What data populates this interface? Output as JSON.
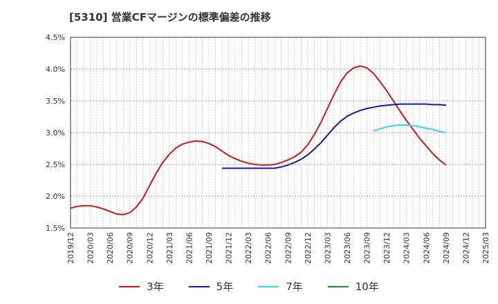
{
  "title": "[5310]  営業CFマージンの標準偏差の推移",
  "chart_data": {
    "type": "line",
    "title": "[5310]  営業CFマージンの標準偏差の推移",
    "xlabel": "",
    "ylabel": "",
    "ylim": [
      1.5,
      4.5
    ],
    "y_ticks": [
      "1.5%",
      "2.0%",
      "2.5%",
      "3.0%",
      "3.5%",
      "4.0%",
      "4.5%"
    ],
    "x_ticks": [
      "2019/12",
      "2020/03",
      "2020/06",
      "2020/09",
      "2020/12",
      "2021/03",
      "2021/06",
      "2021/09",
      "2021/12",
      "2022/03",
      "2022/06",
      "2022/09",
      "2022/12",
      "2023/03",
      "2023/06",
      "2023/09",
      "2023/12",
      "2024/03",
      "2024/06",
      "2024/09",
      "2024/12",
      "2025/03"
    ],
    "grid": true,
    "legend_placement": "bottom",
    "series": [
      {
        "name": "3年",
        "color": "#dd1111",
        "points": [
          [
            "2019/12",
            1.81
          ],
          [
            "2020/01",
            1.84
          ],
          [
            "2020/02",
            1.85
          ],
          [
            "2020/03",
            1.85
          ],
          [
            "2020/04",
            1.83
          ],
          [
            "2020/05",
            1.8
          ],
          [
            "2020/06",
            1.76
          ],
          [
            "2020/07",
            1.72
          ],
          [
            "2020/08",
            1.71
          ],
          [
            "2020/09",
            1.74
          ],
          [
            "2020/10",
            1.83
          ],
          [
            "2020/11",
            1.97
          ],
          [
            "2020/12",
            2.17
          ],
          [
            "2021/01",
            2.36
          ],
          [
            "2021/02",
            2.53
          ],
          [
            "2021/03",
            2.66
          ],
          [
            "2021/04",
            2.76
          ],
          [
            "2021/05",
            2.82
          ],
          [
            "2021/06",
            2.85
          ],
          [
            "2021/07",
            2.87
          ],
          [
            "2021/08",
            2.86
          ],
          [
            "2021/09",
            2.83
          ],
          [
            "2021/10",
            2.78
          ],
          [
            "2021/11",
            2.71
          ],
          [
            "2021/12",
            2.64
          ],
          [
            "2022/01",
            2.59
          ],
          [
            "2022/02",
            2.55
          ],
          [
            "2022/03",
            2.52
          ],
          [
            "2022/04",
            2.5
          ],
          [
            "2022/05",
            2.49
          ],
          [
            "2022/06",
            2.49
          ],
          [
            "2022/07",
            2.5
          ],
          [
            "2022/08",
            2.53
          ],
          [
            "2022/09",
            2.57
          ],
          [
            "2022/10",
            2.62
          ],
          [
            "2022/11",
            2.69
          ],
          [
            "2022/12",
            2.81
          ],
          [
            "2023/01",
            2.97
          ],
          [
            "2023/02",
            3.16
          ],
          [
            "2023/03",
            3.38
          ],
          [
            "2023/04",
            3.6
          ],
          [
            "2023/05",
            3.8
          ],
          [
            "2023/06",
            3.94
          ],
          [
            "2023/07",
            4.02
          ],
          [
            "2023/08",
            4.05
          ],
          [
            "2023/09",
            4.02
          ],
          [
            "2023/10",
            3.93
          ],
          [
            "2023/11",
            3.8
          ],
          [
            "2023/12",
            3.66
          ],
          [
            "2024/01",
            3.5
          ],
          [
            "2024/02",
            3.34
          ],
          [
            "2024/03",
            3.19
          ],
          [
            "2024/04",
            3.05
          ],
          [
            "2024/05",
            2.91
          ],
          [
            "2024/06",
            2.79
          ],
          [
            "2024/07",
            2.67
          ],
          [
            "2024/08",
            2.57
          ],
          [
            "2024/09",
            2.49
          ]
        ]
      },
      {
        "name": "5年",
        "color": "#1111cc",
        "points": [
          [
            "2021/11",
            2.44
          ],
          [
            "2021/12",
            2.44
          ],
          [
            "2022/01",
            2.44
          ],
          [
            "2022/02",
            2.44
          ],
          [
            "2022/03",
            2.44
          ],
          [
            "2022/04",
            2.44
          ],
          [
            "2022/05",
            2.44
          ],
          [
            "2022/06",
            2.44
          ],
          [
            "2022/07",
            2.44
          ],
          [
            "2022/08",
            2.46
          ],
          [
            "2022/09",
            2.49
          ],
          [
            "2022/10",
            2.53
          ],
          [
            "2022/11",
            2.58
          ],
          [
            "2022/12",
            2.65
          ],
          [
            "2023/01",
            2.74
          ],
          [
            "2023/02",
            2.84
          ],
          [
            "2023/03",
            2.96
          ],
          [
            "2023/04",
            3.08
          ],
          [
            "2023/05",
            3.18
          ],
          [
            "2023/06",
            3.26
          ],
          [
            "2023/07",
            3.31
          ],
          [
            "2023/08",
            3.35
          ],
          [
            "2023/09",
            3.38
          ],
          [
            "2023/10",
            3.4
          ],
          [
            "2023/11",
            3.42
          ],
          [
            "2023/12",
            3.43
          ],
          [
            "2024/01",
            3.44
          ],
          [
            "2024/02",
            3.45
          ],
          [
            "2024/03",
            3.45
          ],
          [
            "2024/04",
            3.45
          ],
          [
            "2024/05",
            3.45
          ],
          [
            "2024/06",
            3.45
          ],
          [
            "2024/07",
            3.44
          ],
          [
            "2024/08",
            3.44
          ],
          [
            "2024/09",
            3.43
          ]
        ]
      },
      {
        "name": "7年",
        "color": "#22ddee",
        "points": [
          [
            "2023/10",
            3.03
          ],
          [
            "2023/11",
            3.06
          ],
          [
            "2023/12",
            3.09
          ],
          [
            "2024/01",
            3.11
          ],
          [
            "2024/02",
            3.12
          ],
          [
            "2024/03",
            3.12
          ],
          [
            "2024/04",
            3.11
          ],
          [
            "2024/05",
            3.09
          ],
          [
            "2024/06",
            3.07
          ],
          [
            "2024/07",
            3.05
          ],
          [
            "2024/08",
            3.02
          ],
          [
            "2024/09",
            3.0
          ]
        ]
      },
      {
        "name": "10年",
        "color": "#228822",
        "points": []
      }
    ]
  }
}
